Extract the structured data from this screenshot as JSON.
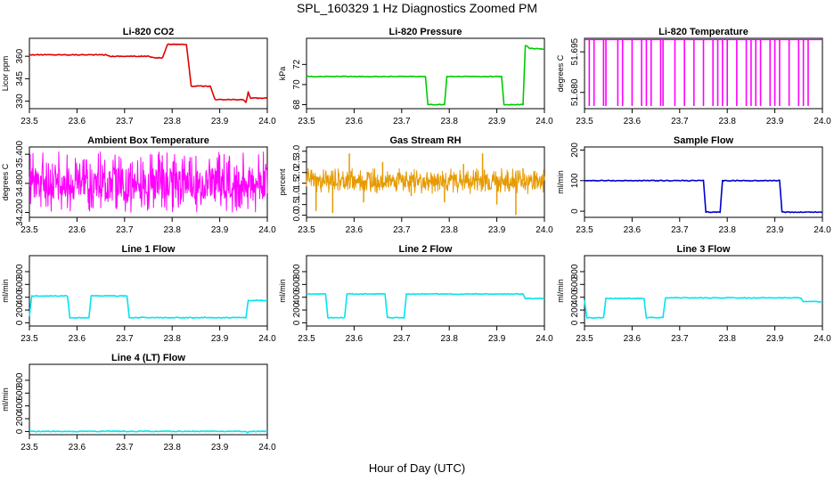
{
  "title": "SPL_160329  1 Hz Diagnostics Zoomed PM",
  "x_axis_label": "Hour of Day (UTC)",
  "chart_data": [
    {
      "type": "line",
      "title": "Li-820 CO2",
      "ylabel": "Licor ppm",
      "color": "#e00000",
      "xlim": [
        23.5,
        24.0
      ],
      "ylim": [
        325,
        372
      ],
      "xticks": [
        23.5,
        23.6,
        23.7,
        23.8,
        23.9,
        24.0
      ],
      "yticks": [
        330,
        345,
        360
      ],
      "x": [
        23.5,
        23.66,
        23.67,
        23.75,
        23.76,
        23.78,
        23.79,
        23.8,
        23.83,
        23.84,
        23.88,
        23.89,
        23.95,
        23.955,
        23.96,
        23.965,
        23.97,
        24.0
      ],
      "y": [
        361,
        361,
        360,
        360,
        359,
        359,
        368,
        368,
        368,
        340,
        340,
        331,
        331,
        329,
        336,
        332,
        332,
        332
      ]
    },
    {
      "type": "line",
      "title": "Li-820 Pressure",
      "ylabel": "kPa",
      "color": "#00cc00",
      "xlim": [
        23.5,
        24.0
      ],
      "ylim": [
        67.6,
        74.6
      ],
      "xticks": [
        23.5,
        23.6,
        23.7,
        23.8,
        23.9,
        24.0
      ],
      "yticks": [
        68,
        70,
        72
      ],
      "x": [
        23.5,
        23.75,
        23.755,
        23.79,
        23.795,
        23.91,
        23.915,
        23.955,
        23.96,
        23.97,
        24.0
      ],
      "y": [
        70.8,
        70.8,
        68,
        68,
        70.8,
        70.8,
        68,
        68,
        73.9,
        73.6,
        73.5
      ]
    },
    {
      "type": "line",
      "title": "Li-820 Temperature",
      "ylabel": "degrees C",
      "color": "#ff00ff",
      "xlim": [
        23.5,
        24.0
      ],
      "ylim": [
        51.674,
        51.7
      ],
      "xticks": [
        23.5,
        23.6,
        23.7,
        23.8,
        23.9,
        24.0
      ],
      "yticks": [
        51.68,
        51.695
      ],
      "baseline": 51.6995,
      "drop_to": 51.675,
      "drops_x": [
        23.51,
        23.52,
        23.54,
        23.545,
        23.57,
        23.58,
        23.6,
        23.62,
        23.63,
        23.64,
        23.66,
        23.665,
        23.69,
        23.71,
        23.73,
        23.75,
        23.77,
        23.78,
        23.79,
        23.8,
        23.82,
        23.84,
        23.85,
        23.86,
        23.87,
        23.89,
        23.9,
        23.91,
        23.93,
        23.95,
        23.96,
        23.97
      ]
    },
    {
      "type": "line",
      "title": "Ambient Box Temperature",
      "ylabel": "degrees C",
      "color": "#ff00ff",
      "xlim": [
        23.5,
        24.0
      ],
      "ylim": [
        34.1,
        35.55
      ],
      "xticks": [
        23.5,
        23.6,
        23.7,
        23.8,
        23.9,
        24.0
      ],
      "yticks": [
        34.2,
        34.8,
        35.4
      ],
      "noise_mean": 34.8,
      "noise_range": [
        34.2,
        35.45
      ]
    },
    {
      "type": "line",
      "title": "Gas Stream RH",
      "ylabel": "percent",
      "color": "#e69a00",
      "xlim": [
        23.5,
        24.0
      ],
      "ylim": [
        -0.1,
        3.2
      ],
      "xticks": [
        23.5,
        23.6,
        23.7,
        23.8,
        23.9,
        24.0
      ],
      "yticks": [
        0.0,
        0.5,
        1.0,
        1.5,
        2.0,
        2.5,
        3.0
      ],
      "noise_mean": 1.6,
      "noise_range": [
        1.0,
        2.2
      ],
      "spikes_x": [
        23.52,
        23.555,
        23.59,
        23.62,
        23.66,
        23.72,
        23.79,
        23.83,
        23.87,
        23.9,
        23.94,
        23.955
      ],
      "spikes_y": [
        0.2,
        0.1,
        2.9,
        0.6,
        2.5,
        0.9,
        0.6,
        2.4,
        2.9,
        0.5,
        0.0,
        2.2
      ]
    },
    {
      "type": "line",
      "title": "Sample Flow",
      "ylabel": "ml/min",
      "color": "#0000cc",
      "xlim": [
        23.5,
        24.0
      ],
      "ylim": [
        -20,
        210
      ],
      "xticks": [
        23.5,
        23.6,
        23.7,
        23.8,
        23.9,
        24.0
      ],
      "yticks": [
        0,
        100,
        200
      ],
      "x": [
        23.5,
        23.75,
        23.755,
        23.785,
        23.79,
        23.91,
        23.915,
        24.0
      ],
      "y": [
        100,
        100,
        -3,
        -3,
        100,
        100,
        -3,
        -3
      ]
    },
    {
      "type": "line",
      "title": "Line 1 Flow",
      "ylabel": "ml/min",
      "color": "#00e5ee",
      "xlim": [
        23.5,
        24.0
      ],
      "ylim": [
        -50,
        1050
      ],
      "xticks": [
        23.5,
        23.6,
        23.7,
        23.8,
        23.9,
        24.0
      ],
      "yticks": [
        0,
        200,
        400,
        600,
        800
      ],
      "x": [
        23.5,
        23.505,
        23.58,
        23.585,
        23.625,
        23.63,
        23.705,
        23.71,
        23.955,
        23.96,
        24.0
      ],
      "y": [
        100,
        420,
        420,
        80,
        80,
        420,
        420,
        80,
        80,
        350,
        350
      ]
    },
    {
      "type": "line",
      "title": "Line 2 Flow",
      "ylabel": "ml/min",
      "color": "#00e5ee",
      "xlim": [
        23.5,
        24.0
      ],
      "ylim": [
        -50,
        1050
      ],
      "xticks": [
        23.5,
        23.6,
        23.7,
        23.8,
        23.9,
        24.0
      ],
      "yticks": [
        0,
        200,
        400,
        600,
        800
      ],
      "x": [
        23.5,
        23.54,
        23.545,
        23.58,
        23.585,
        23.665,
        23.67,
        23.705,
        23.71,
        23.955,
        23.96,
        24.0
      ],
      "y": [
        450,
        450,
        80,
        80,
        450,
        450,
        80,
        80,
        450,
        450,
        380,
        380
      ]
    },
    {
      "type": "line",
      "title": "Line 3 Flow",
      "ylabel": "ml/min",
      "color": "#00e5ee",
      "xlim": [
        23.5,
        24.0
      ],
      "ylim": [
        -50,
        1050
      ],
      "xticks": [
        23.5,
        23.6,
        23.7,
        23.8,
        23.9,
        24.0
      ],
      "yticks": [
        0,
        200,
        400,
        600,
        800
      ],
      "x": [
        23.5,
        23.505,
        23.54,
        23.545,
        23.625,
        23.63,
        23.665,
        23.67,
        23.955,
        23.96,
        24.0
      ],
      "y": [
        350,
        80,
        80,
        380,
        380,
        80,
        80,
        390,
        390,
        330,
        330
      ]
    },
    {
      "type": "line",
      "title": "Line 4 (LT) Flow",
      "ylabel": "ml/min",
      "color": "#00e5ee",
      "xlim": [
        23.5,
        24.0
      ],
      "ylim": [
        -50,
        1050
      ],
      "xticks": [
        23.5,
        23.6,
        23.7,
        23.8,
        23.9,
        24.0
      ],
      "yticks": [
        0,
        200,
        400,
        600,
        800
      ],
      "x": [
        23.5,
        23.955,
        23.958,
        23.962,
        24.0
      ],
      "y": [
        2,
        2,
        -25,
        2,
        2
      ]
    }
  ]
}
